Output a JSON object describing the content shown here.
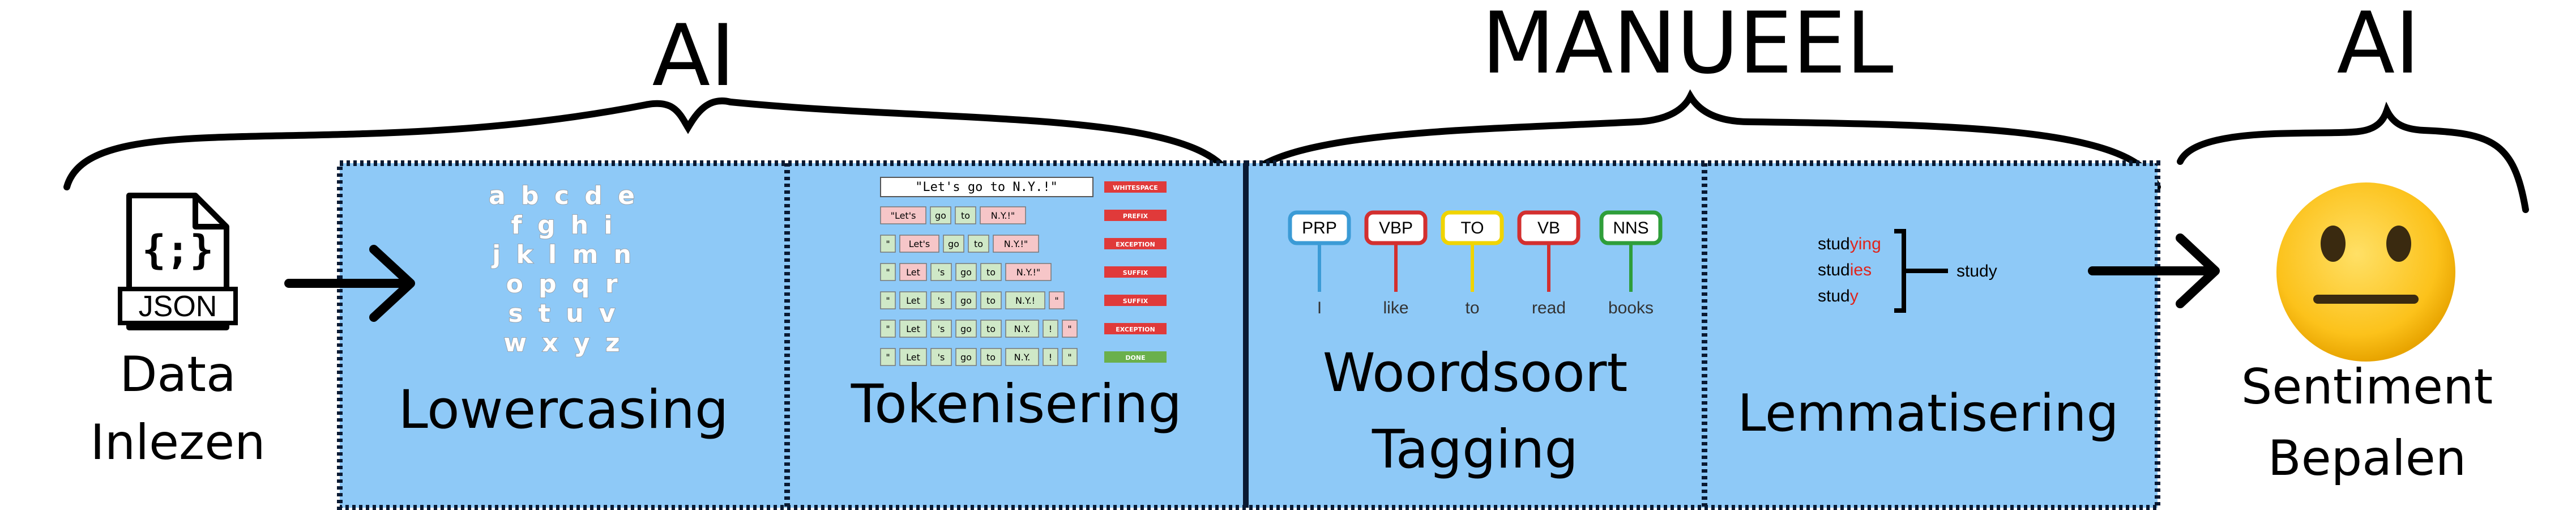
{
  "headers": {
    "left_ai": "AI",
    "middle": "MANUEEL",
    "right_ai": "AI"
  },
  "input": {
    "file_label": "JSON",
    "icon_glyph": "{;}",
    "line1": "Data",
    "line2": "Inlezen"
  },
  "steps": {
    "lowercasing": "Lowercasing",
    "tokenisering": "Tokenisering",
    "woordsoort_line1": "Woordsoort",
    "woordsoort_line2": "Tagging",
    "lemmatisering": "Lemmatisering"
  },
  "output": {
    "line1": "Sentiment",
    "line2": "Bepalen"
  },
  "alphabet_rows": [
    "a b c d e",
    "f g h i",
    "j k l m n",
    "o p q r",
    "s t u v",
    "w x y z"
  ],
  "tokenizer": {
    "sentence": "\"Let's go to N.Y.!\"",
    "rows": [
      [
        "\"Let's",
        "go",
        "to",
        "N.Y.!\""
      ],
      [
        "\"",
        "Let's",
        "go",
        "to",
        "N.Y.!\""
      ],
      [
        "\"",
        "Let",
        "'s",
        "go",
        "to",
        "N.Y.!\""
      ],
      [
        "\"",
        "Let",
        "'s",
        "go",
        "to",
        "N.Y.!",
        "\""
      ],
      [
        "\"",
        "Let",
        "'s",
        "go",
        "to",
        "N.Y.",
        "!",
        "\""
      ],
      [
        "\"",
        "Let",
        "'s",
        "go",
        "to",
        "N.Y.",
        "!",
        "\""
      ]
    ],
    "tags": [
      "WHITESPACE",
      "PREFIX",
      "EXCEPTION",
      "SUFFIX",
      "SUFFIX",
      "EXCEPTION",
      "DONE"
    ]
  },
  "pos": {
    "tags": [
      "PRP",
      "VBP",
      "TO",
      "VB",
      "NNS"
    ],
    "words": [
      "I",
      "like",
      "to",
      "read",
      "books"
    ],
    "colors": [
      "#3b9bd6",
      "#d32f2f",
      "#f0d400",
      "#d32f2f",
      "#2e9e3a"
    ]
  },
  "lemma": {
    "forms": [
      {
        "stem": "stud",
        "suffix": "ying"
      },
      {
        "stem": "stud",
        "suffix": "ies"
      },
      {
        "stem": "stud",
        "suffix": "y"
      }
    ],
    "result": "study"
  },
  "colors": {
    "panel_fill": "#8ec9f7",
    "suffix_red": "#e0241b",
    "emoji_yellow": "#fcc21b",
    "tag_red": "#e03a3a",
    "tag_green": "#6ab04c",
    "token_pink": "#f6c6c8",
    "token_green": "#cfe8c7"
  }
}
